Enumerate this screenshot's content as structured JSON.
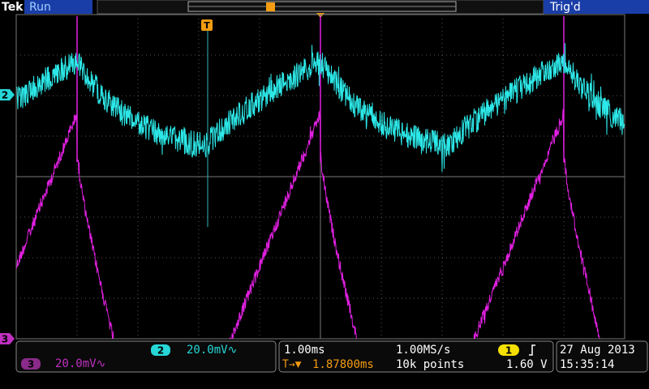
{
  "status_bar": {
    "brand": "Tek",
    "state": "Run",
    "trigger_state": "Trig'd",
    "trigger_marker": "T"
  },
  "screen_markers": {
    "ch2": "2",
    "ch3": "3"
  },
  "channels": [
    {
      "marker": "2",
      "scale": "20.0mV∿"
    },
    {
      "marker": "3",
      "scale": "20.0mV∿"
    }
  ],
  "timebase": {
    "scale": "1.00ms",
    "sample_rate": "1.00MS/s",
    "position_icon": "T→▼",
    "position": "1.87800ms",
    "record_length": "10k points"
  },
  "trigger": {
    "source": "1",
    "level": "1.60 V"
  },
  "datetime": {
    "date": "27 Aug 2013",
    "time": "15:35:14"
  }
}
